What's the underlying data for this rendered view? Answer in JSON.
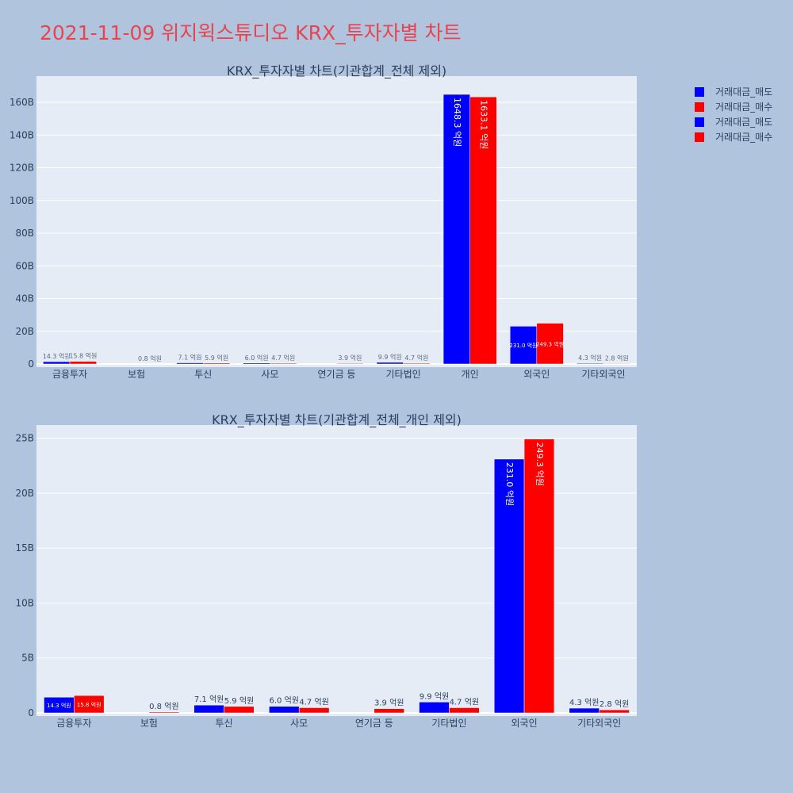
{
  "title": "2021-11-09 위지윅스튜디오 KRX_투자자별 차트",
  "colors": {
    "sell": "#0000ff",
    "buy": "#ff0000",
    "plot_bg": "#e5ecf6",
    "page_bg": "#b0c4de",
    "text": "#2a3f5f"
  },
  "legend": [
    {
      "label": "거래대금_매도",
      "color": "#0000ff"
    },
    {
      "label": "거래대금_매수",
      "color": "#ff0000"
    },
    {
      "label": "거래대금_매도",
      "color": "#0000ff"
    },
    {
      "label": "거래대금_매수",
      "color": "#ff0000"
    }
  ],
  "chart_data": [
    {
      "type": "bar",
      "title": "KRX_투자자별 차트(기관합계_전체 제외)",
      "categories": [
        "금융투자",
        "보험",
        "투신",
        "사모",
        "연기금 등",
        "기타법인",
        "개인",
        "외국인",
        "기타외국인"
      ],
      "series": [
        {
          "name": "거래대금_매도",
          "values": [
            1.43,
            0,
            0.71,
            0.6,
            0,
            0.99,
            164.83,
            23.1,
            0.43
          ],
          "labels": [
            "14.3 억원",
            "",
            "7.1 억원",
            "6.0 억원",
            "",
            "9.9 억원",
            "1648.3 억원",
            "231.0 억원",
            "4.3 억원"
          ]
        },
        {
          "name": "거래대금_매수",
          "values": [
            1.58,
            0.08,
            0.59,
            0.47,
            0.39,
            0.47,
            163.31,
            24.93,
            0.28
          ],
          "labels": [
            "15.8 억원",
            "0.8 억원",
            "5.9 억원",
            "4.7 억원",
            "3.9 억원",
            "4.7 억원",
            "1633.1 억원",
            "249.3 억원",
            "2.8 억원"
          ]
        }
      ],
      "yunit": "B",
      "ylim": [
        0,
        176
      ],
      "yticks": [
        0,
        20,
        40,
        60,
        80,
        100,
        120,
        140,
        160
      ],
      "ytick_labels": [
        "0",
        "20B",
        "40B",
        "60B",
        "80B",
        "100B",
        "120B",
        "140B",
        "160B"
      ],
      "grid": true,
      "legend_position": "right"
    },
    {
      "type": "bar",
      "title": "KRX_투자자별 차트(기관합계_전체_개인 제외)",
      "categories": [
        "금융투자",
        "보험",
        "투신",
        "사모",
        "연기금 등",
        "기타법인",
        "외국인",
        "기타외국인"
      ],
      "series": [
        {
          "name": "거래대금_매도",
          "values": [
            1.43,
            0,
            0.71,
            0.6,
            0,
            0.99,
            23.1,
            0.43
          ],
          "labels": [
            "14.3 억원",
            "",
            "7.1 억원",
            "6.0 억원",
            "",
            "9.9 억원",
            "231.0 억원",
            "4.3 억원"
          ]
        },
        {
          "name": "거래대금_매수",
          "values": [
            1.58,
            0.08,
            0.59,
            0.47,
            0.39,
            0.47,
            24.93,
            0.28
          ],
          "labels": [
            "15.8 억원",
            "0.8 억원",
            "5.9 억원",
            "4.7 억원",
            "3.9 억원",
            "4.7 억원",
            "249.3 억원",
            "2.8 억원"
          ]
        }
      ],
      "yunit": "B",
      "ylim": [
        0,
        26.2
      ],
      "yticks": [
        0,
        5,
        10,
        15,
        20,
        25
      ],
      "ytick_labels": [
        "0",
        "5B",
        "10B",
        "15B",
        "20B",
        "25B"
      ],
      "grid": true,
      "legend_position": "right"
    }
  ]
}
